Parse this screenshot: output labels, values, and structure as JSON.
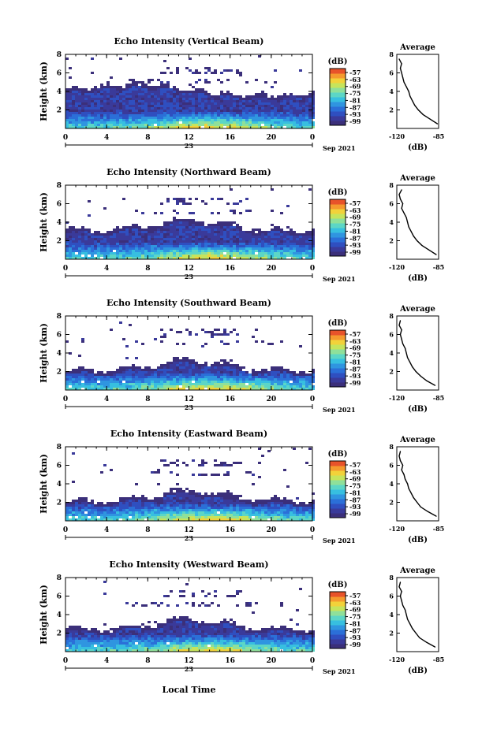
{
  "figure": {
    "xlabel": "Local Time",
    "date_label": "Sep 2021",
    "day_label": "23",
    "ylabel": "Height (km)",
    "cbar_unit": "(dB)",
    "avg_title": "Average",
    "avg_xlabel": "(dB)"
  },
  "colormap": [
    "#3b2f7a",
    "#3a3a9a",
    "#2f4fc0",
    "#2b6fd8",
    "#2f95e0",
    "#37bfe0",
    "#5cd6c6",
    "#8fe09a",
    "#c6e45c",
    "#f2d23a",
    "#f59a2e",
    "#e8532a"
  ],
  "chart_data": [
    {
      "type": "heatmap",
      "title": "Echo Intensity (Vertical Beam)",
      "x_ticks": [
        "0",
        "4",
        "8",
        "12",
        "16",
        "20",
        "0"
      ],
      "x_range": [
        0,
        24
      ],
      "y_ticks": [
        "2",
        "4",
        "6",
        "8"
      ],
      "y_range": [
        0,
        8
      ],
      "colorbar_ticks": [
        "-57",
        "-63",
        "-69",
        "-75",
        "-81",
        "-87",
        "-93",
        "-99"
      ],
      "avg_profile": {
        "x_ticks": [
          "-120",
          "-85"
        ],
        "y_ticks": [
          "2",
          "4",
          "6",
          "8"
        ],
        "x_range": [
          -120,
          -85
        ],
        "y_range": [
          0,
          8
        ],
        "height_km": [
          0.5,
          1.0,
          1.5,
          2.0,
          2.5,
          3.0,
          3.5,
          4.0,
          4.5,
          5.0,
          5.5,
          6.0,
          6.5,
          7.0,
          7.5
        ],
        "db": [
          -86,
          -92,
          -98,
          -102,
          -105,
          -107,
          -109,
          -110,
          -112,
          -114,
          -115,
          -116,
          -117,
          -116,
          -118
        ]
      }
    },
    {
      "type": "heatmap",
      "title": "Echo Intensity (Northward Beam)",
      "x_ticks": [
        "0",
        "4",
        "8",
        "12",
        "16",
        "20",
        "0"
      ],
      "x_range": [
        0,
        24
      ],
      "y_ticks": [
        "2",
        "4",
        "6",
        "8"
      ],
      "y_range": [
        0,
        8
      ],
      "colorbar_ticks": [
        "-57",
        "-63",
        "-69",
        "-75",
        "-81",
        "-87",
        "-93",
        "-99"
      ],
      "avg_profile": {
        "x_ticks": [
          "-120",
          "-85"
        ],
        "y_ticks": [
          "2",
          "4",
          "6",
          "8"
        ],
        "x_range": [
          -120,
          -85
        ],
        "y_range": [
          0,
          8
        ],
        "height_km": [
          0.5,
          1.0,
          1.5,
          2.0,
          2.5,
          3.0,
          3.5,
          4.0,
          4.5,
          5.0,
          5.5,
          6.0,
          6.5,
          7.0,
          7.5
        ],
        "db": [
          -87,
          -93,
          -99,
          -103,
          -106,
          -108,
          -110,
          -111,
          -112,
          -114,
          -116,
          -115,
          -117,
          -118,
          -116
        ]
      }
    },
    {
      "type": "heatmap",
      "title": "Echo Intensity (Southward Beam)",
      "x_ticks": [
        "0",
        "4",
        "8",
        "12",
        "16",
        "20",
        "0"
      ],
      "x_range": [
        0,
        24
      ],
      "y_ticks": [
        "2",
        "4",
        "6",
        "8"
      ],
      "y_range": [
        0,
        8
      ],
      "colorbar_ticks": [
        "-57",
        "-63",
        "-69",
        "-75",
        "-81",
        "-87",
        "-93",
        "-99"
      ],
      "avg_profile": {
        "x_ticks": [
          "-120",
          "-85"
        ],
        "y_ticks": [
          "2",
          "4",
          "6",
          "8"
        ],
        "x_range": [
          -120,
          -85
        ],
        "y_range": [
          0,
          8
        ],
        "height_km": [
          0.5,
          1.0,
          1.5,
          2.0,
          2.5,
          3.0,
          3.5,
          4.0,
          4.5,
          5.0,
          5.5,
          6.0,
          6.5,
          7.0,
          7.5
        ],
        "db": [
          -88,
          -95,
          -100,
          -104,
          -107,
          -109,
          -111,
          -112,
          -113,
          -115,
          -116,
          -117,
          -116,
          -118,
          -117
        ]
      }
    },
    {
      "type": "heatmap",
      "title": "Echo Intensity (Eastward Beam)",
      "x_ticks": [
        "0",
        "4",
        "8",
        "12",
        "16",
        "20",
        "0"
      ],
      "x_range": [
        0,
        24
      ],
      "y_ticks": [
        "2",
        "4",
        "6",
        "8"
      ],
      "y_range": [
        0,
        8
      ],
      "colorbar_ticks": [
        "-57",
        "-63",
        "-69",
        "-75",
        "-81",
        "-87",
        "-93",
        "-99"
      ],
      "avg_profile": {
        "x_ticks": [
          "-120",
          "-85"
        ],
        "y_ticks": [
          "2",
          "4",
          "6",
          "8"
        ],
        "x_range": [
          -120,
          -85
        ],
        "y_range": [
          0,
          8
        ],
        "height_km": [
          0.5,
          1.0,
          1.5,
          2.0,
          2.5,
          3.0,
          3.5,
          4.0,
          4.5,
          5.0,
          5.5,
          6.0,
          6.5,
          7.0,
          7.5
        ],
        "db": [
          -87,
          -94,
          -100,
          -103,
          -106,
          -108,
          -110,
          -111,
          -113,
          -114,
          -116,
          -115,
          -117,
          -118,
          -117
        ]
      }
    },
    {
      "type": "heatmap",
      "title": "Echo Intensity (Westward Beam)",
      "x_ticks": [
        "0",
        "4",
        "8",
        "12",
        "16",
        "20",
        "0"
      ],
      "x_range": [
        0,
        24
      ],
      "y_ticks": [
        "2",
        "4",
        "6",
        "8"
      ],
      "y_range": [
        0,
        8
      ],
      "colorbar_ticks": [
        "-57",
        "-63",
        "-69",
        "-75",
        "-81",
        "-87",
        "-93",
        "-99"
      ],
      "avg_profile": {
        "x_ticks": [
          "-120",
          "-85"
        ],
        "y_ticks": [
          "2",
          "4",
          "6",
          "8"
        ],
        "x_range": [
          -120,
          -85
        ],
        "y_range": [
          0,
          8
        ],
        "height_km": [
          0.5,
          1.0,
          1.5,
          2.0,
          2.5,
          3.0,
          3.5,
          4.0,
          4.5,
          5.0,
          5.5,
          6.0,
          6.5,
          7.0,
          7.5
        ],
        "db": [
          -88,
          -95,
          -101,
          -104,
          -107,
          -109,
          -111,
          -112,
          -113,
          -115,
          -116,
          -117,
          -116,
          -118,
          -117
        ]
      }
    }
  ]
}
